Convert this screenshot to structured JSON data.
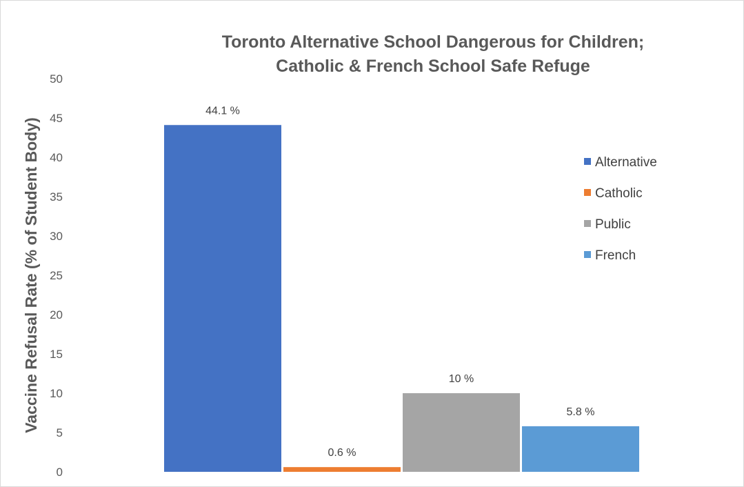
{
  "chart_data": {
    "type": "bar",
    "title_lines": [
      "Toronto Alternative School Dangerous for Children;",
      "Catholic & French School Safe Refuge"
    ],
    "xlabel": "",
    "ylabel": "Vaccine Refusal  Rate (% of Student Body)",
    "ylim": [
      0,
      50
    ],
    "y_ticks": [
      "0",
      "5",
      "10",
      "15",
      "20",
      "25",
      "30",
      "35",
      "40",
      "45",
      "50"
    ],
    "grid": false,
    "legend_position": "right",
    "series": [
      {
        "name": "Alternative",
        "value": 44.1,
        "label": "44.1 %",
        "color": "#4472c4"
      },
      {
        "name": "Catholic",
        "value": 0.6,
        "label": "0.6 %",
        "color": "#ed7d31"
      },
      {
        "name": "Public",
        "value": 10,
        "label": "10 %",
        "color": "#a5a5a5"
      },
      {
        "name": "French",
        "value": 5.8,
        "label": "5.8 %",
        "color": "#5b9bd5"
      }
    ]
  }
}
